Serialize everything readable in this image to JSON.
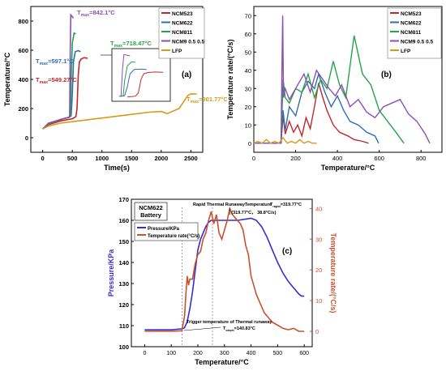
{
  "chart_data": [
    {
      "type": "line",
      "panel": "(a)",
      "xlabel": "Time(s)",
      "ylabel": "Temperature/°C",
      "xlim": [
        -200,
        2700
      ],
      "ylim": [
        -100,
        900
      ],
      "xticks": [
        0,
        500,
        1000,
        1500,
        2000,
        2500
      ],
      "yticks": [
        0,
        200,
        400,
        600,
        800
      ],
      "grid": false,
      "legend_position": "top-right",
      "colors": {
        "NCM523": "#c0282b",
        "NCM622": "#2f6db5",
        "NCM811": "#25a348",
        "NCM9 0.5 0.5": "#8a4fb3",
        "LFP": "#d79a1a"
      },
      "annotations": [
        {
          "label": "T",
          "sub": "max",
          "value": "=842.1°C",
          "color": "#8a4fb3"
        },
        {
          "label": "T",
          "sub": "max",
          "value": "=718.47°C",
          "color": "#25a348"
        },
        {
          "label": "T",
          "sub": "max",
          "value": "=597.1°C",
          "color": "#2f6db5"
        },
        {
          "label": "T",
          "sub": "max",
          "value": "=549.27°C",
          "color": "#c0282b"
        },
        {
          "label": "T",
          "sub": "max",
          "value": "=301.77°C",
          "color": "#d79a1a"
        }
      ],
      "series": [
        {
          "name": "NCM523",
          "x": [
            0,
            100,
            300,
            500,
            560,
            580,
            600,
            620,
            650,
            700,
            760
          ],
          "y": [
            60,
            90,
            115,
            130,
            145,
            200,
            430,
            520,
            540,
            549,
            545
          ]
        },
        {
          "name": "NCM622",
          "x": [
            0,
            100,
            300,
            450,
            480,
            500,
            520,
            550,
            600,
            640
          ],
          "y": [
            60,
            95,
            125,
            140,
            150,
            300,
            520,
            590,
            597,
            590
          ]
        },
        {
          "name": "NCM811",
          "x": [
            0,
            100,
            300,
            450,
            470,
            480,
            500,
            530,
            560
          ],
          "y": [
            60,
            95,
            125,
            140,
            150,
            400,
            650,
            718,
            712
          ]
        },
        {
          "name": "NCM9 0.5 0.5",
          "x": [
            0,
            100,
            300,
            440,
            455,
            465,
            475,
            500,
            520
          ],
          "y": [
            60,
            100,
            125,
            140,
            150,
            600,
            842,
            830,
            820
          ]
        },
        {
          "name": "LFP",
          "x": [
            0,
            100,
            300,
            600,
            900,
            1200,
            1500,
            1800,
            2000,
            2100,
            2300,
            2400,
            2450,
            2500,
            2600
          ],
          "y": [
            60,
            80,
            100,
            115,
            130,
            145,
            160,
            175,
            180,
            165,
            200,
            260,
            290,
            301,
            300
          ]
        }
      ]
    },
    {
      "type": "line",
      "panel": "(b)",
      "xlabel": "Temperature/°C",
      "ylabel": "Temperature rate/(°C/s)",
      "xlim": [
        0,
        900
      ],
      "ylim": [
        -5,
        75
      ],
      "xticks": [
        0,
        200,
        400,
        600,
        800
      ],
      "yticks": [
        0,
        10,
        20,
        30,
        40,
        50,
        60,
        70
      ],
      "grid": false,
      "legend_position": "top-right",
      "series": [
        {
          "name": "NCM523",
          "x": [
            0,
            130,
            140,
            150,
            170,
            190,
            210,
            230,
            250,
            270,
            290,
            310,
            330,
            350,
            380,
            410,
            450,
            480,
            520,
            549
          ],
          "y": [
            0,
            0,
            15,
            5,
            12,
            6,
            10,
            4,
            14,
            8,
            20,
            33,
            25,
            18,
            10,
            6,
            4,
            2,
            1,
            0
          ]
        },
        {
          "name": "NCM622",
          "x": [
            0,
            130,
            140,
            150,
            170,
            200,
            230,
            260,
            290,
            310,
            340,
            370,
            400,
            430,
            460,
            500,
            540,
            580,
            597
          ],
          "y": [
            0,
            0,
            18,
            7,
            20,
            15,
            28,
            34,
            30,
            38,
            28,
            20,
            26,
            18,
            12,
            10,
            6,
            4,
            0
          ]
        },
        {
          "name": "NCM811",
          "x": [
            0,
            130,
            140,
            150,
            170,
            200,
            230,
            260,
            290,
            320,
            350,
            380,
            410,
            440,
            480,
            520,
            560,
            600,
            640,
            680,
            718
          ],
          "y": [
            0,
            0,
            35,
            25,
            22,
            30,
            28,
            38,
            25,
            35,
            30,
            45,
            32,
            25,
            59,
            38,
            32,
            18,
            12,
            6,
            0
          ]
        },
        {
          "name": "NCM9 0.5 0.5",
          "x": [
            0,
            130,
            138,
            142,
            150,
            170,
            200,
            240,
            270,
            300,
            330,
            360,
            390,
            420,
            460,
            500,
            540,
            580,
            620,
            660,
            700,
            740,
            780,
            820,
            842
          ],
          "y": [
            0,
            0,
            70,
            25,
            30,
            24,
            30,
            38,
            28,
            40,
            35,
            30,
            26,
            32,
            20,
            24,
            17,
            14,
            20,
            22,
            24,
            16,
            12,
            5,
            0
          ]
        },
        {
          "name": "LFP",
          "x": [
            0,
            20,
            40,
            60,
            80,
            100,
            120,
            140,
            160,
            180,
            200,
            220,
            240,
            260,
            280,
            301
          ],
          "y": [
            0,
            1,
            0,
            2,
            0,
            1,
            0,
            3,
            0,
            1,
            0,
            2,
            0,
            1,
            0,
            0
          ]
        }
      ]
    },
    {
      "type": "line",
      "panel": "(c)",
      "title_box": [
        "NCM622",
        "Battery"
      ],
      "xlabel": "Temperature/°C",
      "ylabel_left": "Pressure/KPa",
      "ylabel_right": "Temperature rate/(°C/s)",
      "xlim": [
        -50,
        630
      ],
      "ylim_left": [
        100,
        170
      ],
      "ylim_right": [
        -5,
        43
      ],
      "xticks": [
        0,
        100,
        200,
        300,
        400,
        500,
        600
      ],
      "yticks_left": [
        100,
        110,
        120,
        130,
        140,
        150,
        160,
        170
      ],
      "yticks_right": [
        0,
        10,
        20,
        30,
        40
      ],
      "grid": false,
      "legend_position": "top-left",
      "annotation_rapid_line1": "Rapid Thermal RunawayTemperature",
      "annotation_rapid_T": "T",
      "annotation_rapid_sub": "rapid",
      "annotation_rapid_value": "=319.77°C",
      "annotation_rapid_point": "(319.77°C， 38.8°C/s)",
      "annotation_trigger_line1": "Trigger temperature of Thermal runaway",
      "annotation_trigger_T": "T",
      "annotation_trigger_sub": "onset",
      "annotation_trigger_value": "=140.83°C",
      "series": [
        {
          "name": "Pressure/KPa",
          "axis": "left",
          "color": "#3a2bd0",
          "x": [
            0,
            50,
            100,
            140,
            150,
            160,
            170,
            180,
            190,
            200,
            210,
            220,
            230,
            240,
            250,
            260,
            300,
            350,
            400,
            420,
            440,
            460,
            480,
            500,
            520,
            540,
            560,
            580,
            590,
            600
          ],
          "y": [
            108,
            108,
            108,
            108.5,
            109,
            112,
            118,
            126,
            136,
            146,
            151,
            154,
            157,
            159,
            160,
            160,
            160,
            160,
            161,
            160,
            157,
            152,
            146,
            140,
            135,
            131,
            128,
            125,
            124,
            124
          ]
        },
        {
          "name": "Temperature rate(°C/s)",
          "axis": "right",
          "color": "#c8522e",
          "x": [
            0,
            50,
            100,
            140,
            150,
            155,
            160,
            165,
            170,
            180,
            190,
            200,
            210,
            220,
            230,
            240,
            250,
            260,
            270,
            280,
            290,
            300,
            310,
            320,
            330,
            340,
            350,
            360,
            370,
            380,
            390,
            400,
            410,
            420,
            430,
            440,
            450,
            460,
            480,
            500,
            520,
            540,
            560,
            580,
            590,
            600
          ],
          "y": [
            0,
            0,
            0,
            0.2,
            5,
            12,
            18,
            15,
            17,
            17,
            22,
            25,
            26,
            30,
            32,
            36,
            39,
            35,
            38,
            32,
            30,
            33,
            36,
            40,
            38,
            37,
            36,
            35,
            33,
            28,
            25,
            18,
            15,
            12,
            10,
            8,
            6,
            5,
            3,
            2,
            1,
            0.5,
            1,
            0,
            0,
            0
          ]
        }
      ]
    }
  ]
}
